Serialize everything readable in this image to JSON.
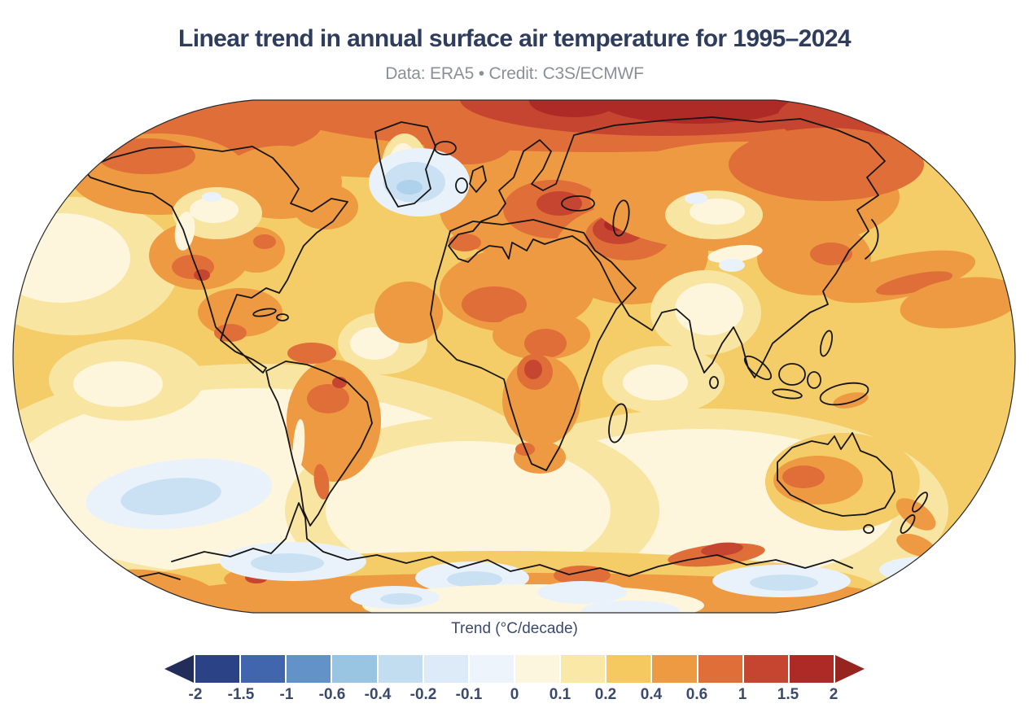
{
  "header": {
    "title": "Linear trend in annual surface air temperature for 1995–2024",
    "subtitle": "Data: ERA5 • Credit: C3S/ECMWF"
  },
  "chart_data": {
    "type": "heatmap",
    "map": "World map, Robinson projection, filled contours of linear temperature trend with black coastlines",
    "title": "Linear trend in annual surface air temperature for 1995–2024",
    "subtitle": "Data: ERA5 • Credit: C3S/ECMWF",
    "colorbar": {
      "label": "Trend (°C/decade)",
      "units": "°C/decade",
      "range_shown": [
        -2,
        2
      ],
      "tick_labels": [
        "-2",
        "-1.5",
        "-1",
        "-0.6",
        "-0.4",
        "-0.2",
        "-0.1",
        "0",
        "0.1",
        "0.2",
        "0.4",
        "0.6",
        "1",
        "1.5",
        "2"
      ],
      "segment_colors": [
        "#2c4287",
        "#4166ad",
        "#6292c8",
        "#99c5e3",
        "#c3ddf0",
        "#dcebf7",
        "#edf4fb",
        "#fdf6de",
        "#f9e8a6",
        "#f5c95f",
        "#ee9a42",
        "#e06e38",
        "#c64531",
        "#ae2a26"
      ],
      "under_arrow_color": "#222d5a",
      "over_arrow_color": "#96241f",
      "legend_position": "bottom"
    },
    "notable_features": [
      "Strongest warming (above 1 °C/decade, dark red) across the Arctic, darkest over the Siberian Arctic coast",
      "North Atlantic cold blob south of Greenland shows weak cooling (about -0.1 to -0.4 °C/decade)",
      "Scattered weak-cooling (pale blue) patches over the Southern Ocean and near coastal Antarctica",
      "Most land areas warming roughly 0.2-0.6 °C/decade; tropical and southern oceans mostly 0-0.2"
    ]
  },
  "style": {
    "background": "#ffffff",
    "title_color": "#2e3d5e",
    "subtitle_color": "#8b9097",
    "axis_text_color": "#3b4a6c",
    "coastline_color": "#151515",
    "ocean_base_color": "#f4cc68"
  }
}
